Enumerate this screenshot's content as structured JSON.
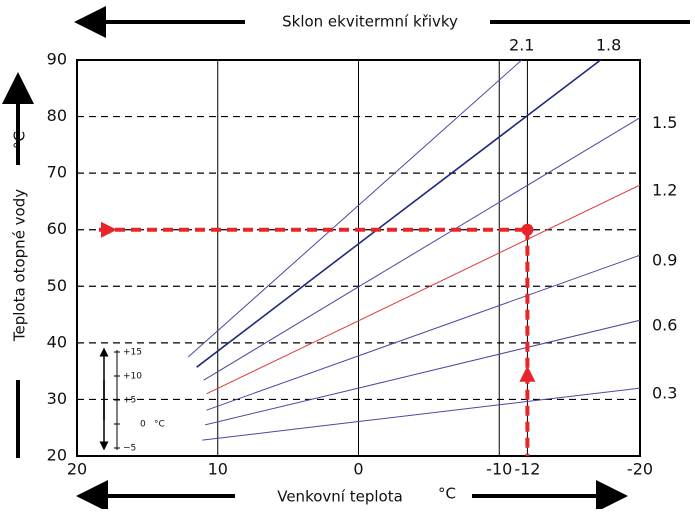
{
  "chart_data": {
    "type": "line",
    "title": "Sklon ekvitermní křivky",
    "xlabel": "Venkovní teplota",
    "x_unit": "°C",
    "ylabel": "Teplota otopné vody",
    "y_unit": "°C",
    "xlim": [
      20,
      -20
    ],
    "xticks": [
      20,
      10,
      0,
      -10,
      -12,
      -20
    ],
    "ylim": [
      20,
      90
    ],
    "yticks": [
      20,
      30,
      40,
      50,
      60,
      70,
      80,
      90
    ],
    "grid": true,
    "series": [
      {
        "name": "2.1",
        "color": "#4a4aa0",
        "x": [
          12.1,
          0,
          -11.6
        ],
        "values": [
          37.5,
          64.3,
          90
        ]
      },
      {
        "name": "1.8",
        "color": "#1f2a7a",
        "x": [
          11.5,
          0,
          -17.2
        ],
        "values": [
          35.7,
          57.5,
          90
        ]
      },
      {
        "name": "1.5",
        "color": "#4a4aa0",
        "x": [
          11,
          0,
          -20
        ],
        "values": [
          33.4,
          49.9,
          79.8
        ]
      },
      {
        "name": "1.2",
        "color": "#e03a3a",
        "x": [
          10.8,
          0,
          -20
        ],
        "values": [
          31,
          43.9,
          67.9
        ]
      },
      {
        "name": "0.9",
        "color": "#4a4aa0",
        "x": [
          10.8,
          0,
          -20
        ],
        "values": [
          28.1,
          37.7,
          55.5
        ]
      },
      {
        "name": "0.6",
        "color": "#4a4aa0",
        "x": [
          10.9,
          0,
          -20
        ],
        "values": [
          25.5,
          32,
          44
        ]
      },
      {
        "name": "0.3",
        "color": "#4a4aa0",
        "x": [
          11.1,
          0,
          -20
        ],
        "values": [
          22.8,
          26.1,
          32
        ]
      }
    ],
    "operating_point": {
      "x": -12,
      "y": 60,
      "color": "#e8262a"
    },
    "inset": {
      "labels": [
        "+15",
        "+10",
        "+5",
        "0",
        "−5"
      ],
      "unit": "°C"
    }
  }
}
